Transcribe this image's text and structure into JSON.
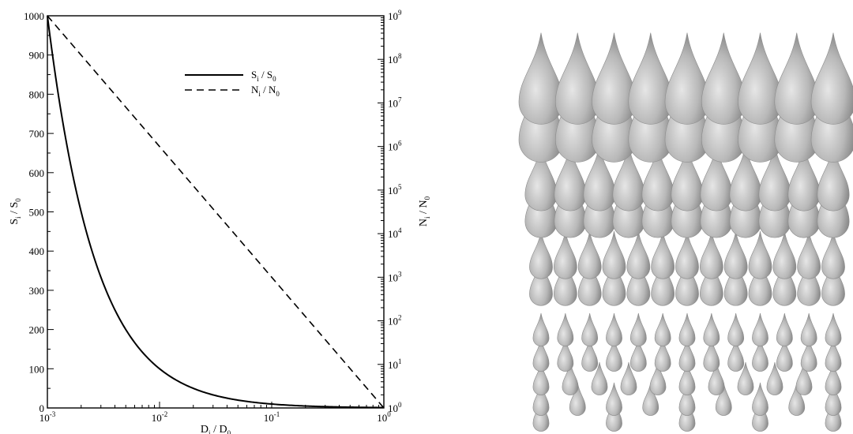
{
  "chart_data": [
    {
      "type": "line",
      "title": "",
      "x_axis": {
        "label_base": "D",
        "label_sub": "i",
        "label_sep": " / ",
        "label_base2": "D",
        "label_sub2": "0",
        "scale": "log",
        "range": [
          0.001,
          1
        ],
        "ticks": [
          {
            "value": 0.001,
            "base": "10",
            "exp": "-3"
          },
          {
            "value": 0.01,
            "base": "10",
            "exp": "-2"
          },
          {
            "value": 0.1,
            "base": "10",
            "exp": "-1"
          },
          {
            "value": 1,
            "base": "10",
            "exp": "0"
          }
        ]
      },
      "y_left": {
        "label_base": "S",
        "label_sub": "i",
        "label_sep": " / ",
        "label_base2": "S",
        "label_sub2": "0",
        "scale": "linear",
        "range": [
          0,
          1000
        ],
        "ticks": [
          "0",
          "100",
          "200",
          "300",
          "400",
          "500",
          "600",
          "700",
          "800",
          "900",
          "1000"
        ]
      },
      "y_right": {
        "label_base": "N",
        "label_sub": "i",
        "label_sep": " / ",
        "label_base2": "N",
        "label_sub2": "0",
        "scale": "log",
        "range": [
          1,
          1000000000
        ],
        "ticks": [
          {
            "value": 1,
            "base": "10",
            "exp": "0"
          },
          {
            "value": 10,
            "base": "10",
            "exp": "1"
          },
          {
            "value": 100,
            "base": "10",
            "exp": "2"
          },
          {
            "value": 1000,
            "base": "10",
            "exp": "3"
          },
          {
            "value": 10000,
            "base": "10",
            "exp": "4"
          },
          {
            "value": 100000,
            "base": "10",
            "exp": "5"
          },
          {
            "value": 1000000,
            "base": "10",
            "exp": "6"
          },
          {
            "value": 10000000,
            "base": "10",
            "exp": "7"
          },
          {
            "value": 100000000,
            "base": "10",
            "exp": "8"
          },
          {
            "value": 1000000000,
            "base": "10",
            "exp": "9"
          }
        ]
      },
      "legend": {
        "placement": "top-right"
      },
      "grid": false,
      "series": [
        {
          "name": "S_i / S_0",
          "legend_base": "S",
          "legend_sub": "i",
          "legend_sep": " / ",
          "legend_base2": "S",
          "legend_sub2": "0",
          "axis": "left",
          "style": "solid",
          "color": "#000000",
          "x": [
            0.001,
            0.0012,
            0.0015,
            0.002,
            0.003,
            0.005,
            0.01,
            0.02,
            0.05,
            0.1,
            0.2,
            0.5,
            1
          ],
          "y": [
            1000,
            833,
            667,
            500,
            333,
            200,
            100,
            50,
            20,
            10,
            5,
            2,
            1
          ]
        },
        {
          "name": "N_i / N_0",
          "legend_base": "N",
          "legend_sub": "i",
          "legend_sep": " / ",
          "legend_base2": "N",
          "legend_sub2": "0",
          "axis": "right",
          "style": "dashed",
          "color": "#000000",
          "x": [
            0.001,
            0.01,
            0.1,
            1
          ],
          "y": [
            1000000000,
            1000000,
            1000,
            1
          ]
        }
      ]
    }
  ],
  "illustration": {
    "subject": "array of identical drops",
    "drop_color": "#b8b8b8",
    "drop_highlight": "#e6e6e6",
    "drop_shadow": "#7a7a7a",
    "rows": [
      {
        "count": 9,
        "size": 1.0
      },
      {
        "count": 9,
        "size": 1.0
      },
      {
        "count": 11,
        "size": 0.72
      },
      {
        "count": 11,
        "size": 0.72
      },
      {
        "count": 13,
        "size": 0.52
      },
      {
        "count": 13,
        "size": 0.52
      },
      {
        "count": 13,
        "size": 0.36
      },
      {
        "count": 13,
        "size": 0.36
      },
      {
        "count": 11,
        "size": 0.36
      },
      {
        "count": 9,
        "size": 0.36
      },
      {
        "count": 5,
        "size": 0.36
      }
    ]
  }
}
